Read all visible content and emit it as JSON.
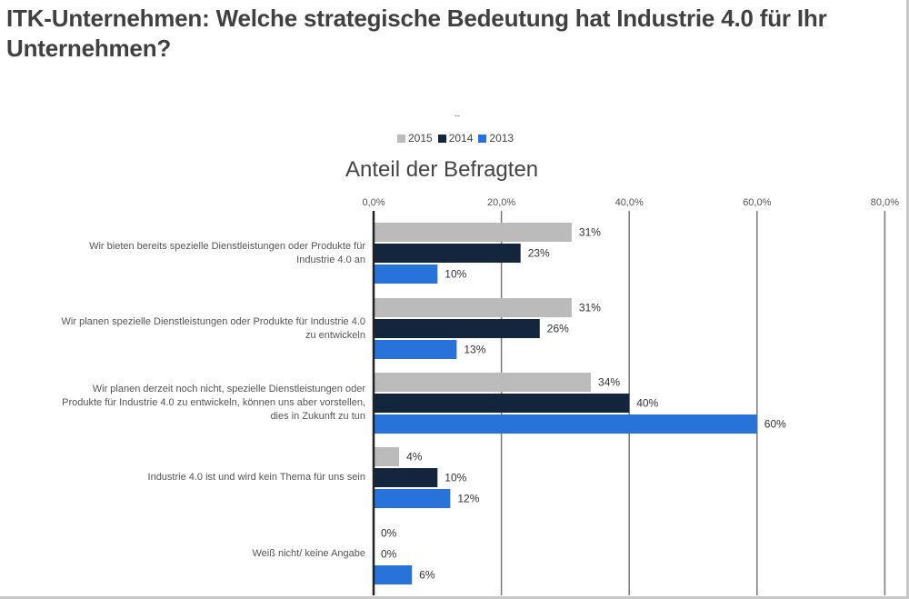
{
  "page": {
    "title": "ITK-Unternehmen: Welche strategische Bedeutung hat Industrie 4.0 für Ihr Unternehmen?",
    "dash": "--"
  },
  "colors": {
    "2015": "#bbbbbb",
    "2014": "#13263d",
    "2013": "#2873d9"
  },
  "chart_data": {
    "type": "bar",
    "orientation": "horizontal",
    "title": "Anteil der Befragten",
    "xlabel": "",
    "ylabel": "",
    "xlim": [
      0,
      80
    ],
    "xticks": [
      0,
      20,
      40,
      60,
      80
    ],
    "xtick_labels": [
      "0,0%",
      "20,0%",
      "40,0%",
      "60,0%",
      "80,0%"
    ],
    "axis_position": "top",
    "grid": true,
    "legend_position": "top-center",
    "categories": [
      [
        "Wir bieten bereits spezielle Dienstleistungen oder Produkte für",
        "Industrie 4.0 an"
      ],
      [
        "Wir planen spezielle Dienstleistungen oder Produkte für Industrie 4.0",
        "zu entwickeln"
      ],
      [
        "Wir planen derzeit noch nicht, spezielle Dienstleistungen oder",
        "Produkte für Industrie 4.0 zu entwickeln, können uns aber vorstellen,",
        "dies in Zukunft zu tun"
      ],
      [
        "Industrie 4.0 ist und wird kein Thema für uns sein"
      ],
      [
        "Weiß nicht/ keine Angabe"
      ]
    ],
    "series": [
      {
        "name": "2015",
        "values": [
          31,
          31,
          34,
          4,
          0
        ],
        "labels": [
          "31%",
          "31%",
          "34%",
          "4%",
          "0%"
        ]
      },
      {
        "name": "2014",
        "values": [
          23,
          26,
          40,
          10,
          0
        ],
        "labels": [
          "23%",
          "26%",
          "40%",
          "10%",
          "0%"
        ]
      },
      {
        "name": "2013",
        "values": [
          10,
          13,
          60,
          12,
          6
        ],
        "labels": [
          "10%",
          "13%",
          "60%",
          "12%",
          "6%"
        ]
      }
    ]
  }
}
